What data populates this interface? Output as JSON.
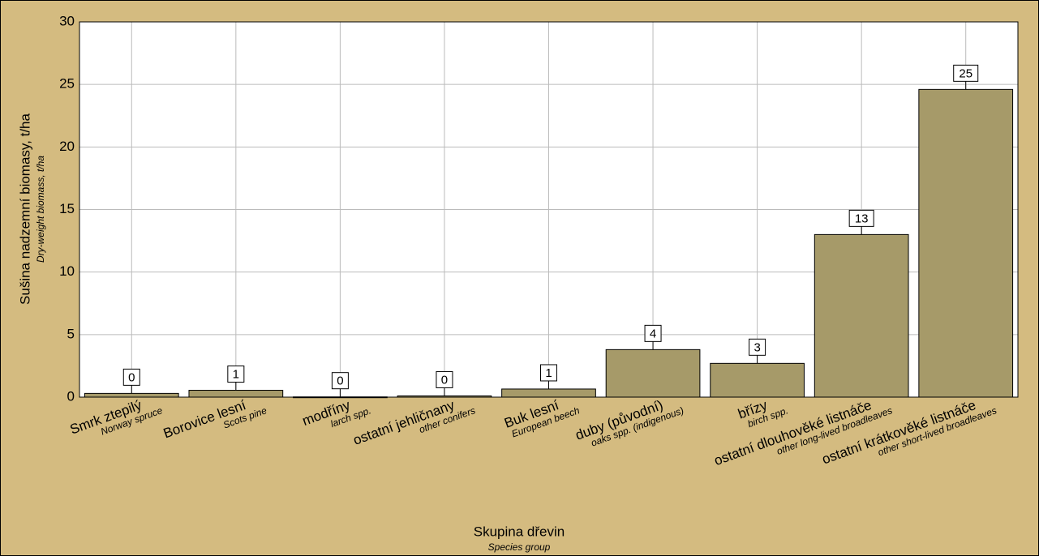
{
  "chart_data": {
    "type": "bar",
    "y_label": "Sušina nadzemní biomasy, t/ha",
    "y_sublabel": "Dry-weight biomass, t/ha",
    "x_label": "Skupina dřevin",
    "x_sublabel": "Species group",
    "categories": [
      "Smrk ztepilý",
      "Borovice lesní",
      "modříny",
      "ostatní jehličnany",
      "Buk lesní",
      "duby (původní)",
      "břízy",
      "ostatní dlouhověké listnáče",
      "ostatní krátkověké listnáče"
    ],
    "category_sublabels": [
      "Norway spruce",
      "Scots pine",
      "larch spp.",
      "other conifers",
      "European beech",
      "oaks spp. (indigenous)",
      "birch spp.",
      "other long-lived broadleaves",
      "other short-lived broadleaves"
    ],
    "values": [
      0.3,
      0.55,
      0.02,
      0.1,
      0.65,
      3.8,
      2.7,
      13.0,
      24.6
    ],
    "value_labels": [
      "0",
      "1",
      "0",
      "0",
      "1",
      "4",
      "3",
      "13",
      "25"
    ],
    "color": "#a69a69",
    "ylim": [
      0,
      30
    ],
    "yticks": [
      0,
      5,
      10,
      15,
      20,
      25,
      30
    ],
    "grid": true
  }
}
